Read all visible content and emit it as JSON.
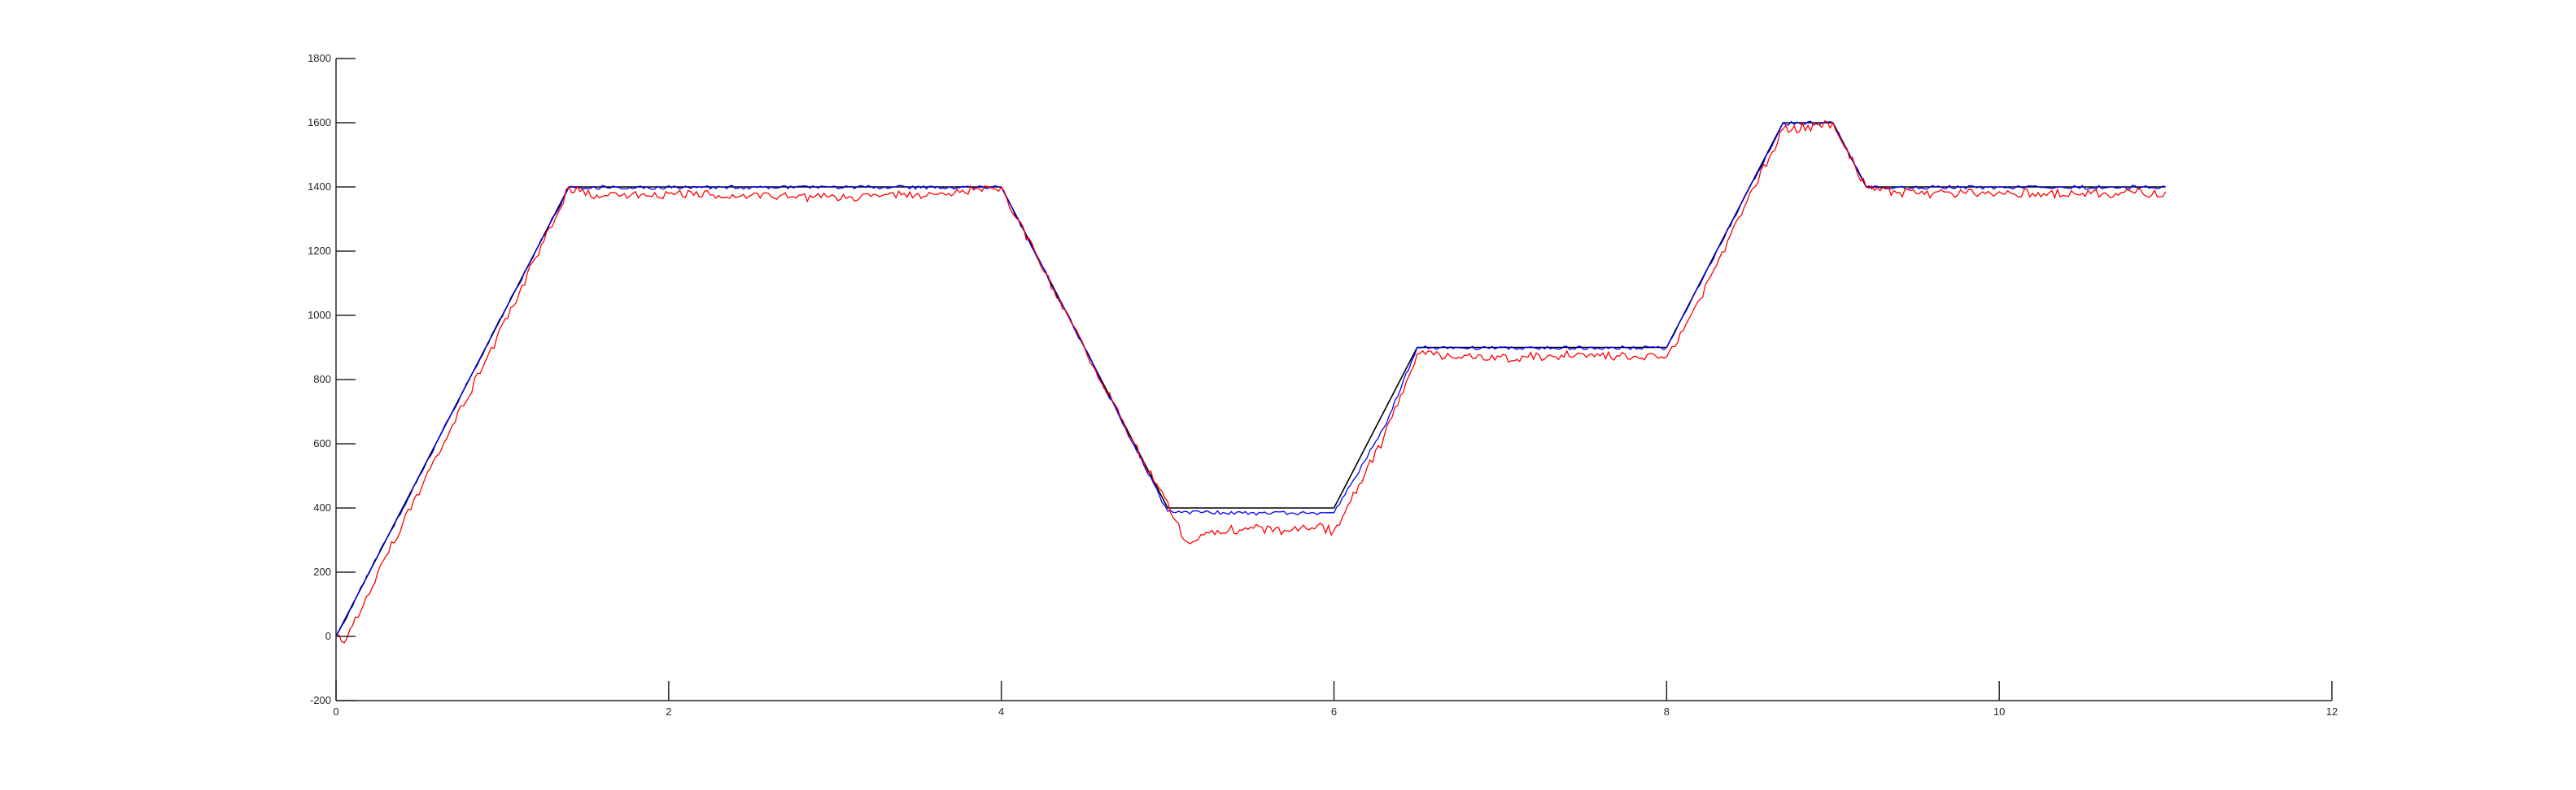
{
  "chart_data": {
    "type": "line",
    "title": "",
    "xlabel": "",
    "ylabel": "",
    "xlim": [
      0,
      12
    ],
    "ylim": [
      -200,
      1800
    ],
    "xticks": [
      "0",
      "2",
      "4",
      "6",
      "8",
      "10",
      "12"
    ],
    "yticks": [
      "-200",
      "0",
      "200",
      "400",
      "600",
      "800",
      "1000",
      "1200",
      "1400",
      "1600",
      "1800"
    ],
    "grid": false,
    "legend": "none",
    "colors": {
      "reference": "#000000",
      "series_blue": "#0000ff",
      "series_red": "#ff0000",
      "axis": "#262626"
    },
    "series": [
      {
        "color": "#000000",
        "x": [
          0,
          1.4,
          4.0,
          5.0,
          6.0,
          6.5,
          8.0,
          8.7,
          9.0,
          9.2,
          11.0
        ],
        "y": [
          0,
          1400,
          1400,
          400,
          400,
          900,
          900,
          1600,
          1600,
          1400,
          1400
        ]
      },
      {
        "color": "#0000ff",
        "x": [
          0,
          0.3,
          0.6,
          0.9,
          1.2,
          1.4,
          2.5,
          4.0,
          4.5,
          5.0,
          5.5,
          6.0,
          6.3,
          6.5,
          7.2,
          8.0,
          8.3,
          8.6,
          8.7,
          9.0,
          9.2,
          10.0,
          11.0
        ],
        "y": [
          0,
          300,
          600,
          900,
          1200,
          1400,
          1400,
          1400,
          900,
          390,
          385,
          385,
          650,
          900,
          900,
          900,
          1200,
          1500,
          1600,
          1600,
          1400,
          1400,
          1400
        ]
      },
      {
        "color": "#ff0000",
        "x": [
          0,
          0.05,
          0.3,
          0.6,
          0.9,
          1.2,
          1.4,
          1.6,
          2.0,
          2.5,
          3.0,
          3.5,
          4.0,
          4.5,
          4.8,
          5.0,
          5.1,
          5.3,
          5.5,
          5.7,
          5.9,
          6.0,
          6.3,
          6.5,
          7.0,
          7.5,
          8.0,
          8.2,
          8.5,
          8.7,
          9.0,
          9.2,
          9.5,
          10.0,
          10.5,
          11.0
        ],
        "y": [
          0,
          -20,
          250,
          560,
          860,
          1180,
          1400,
          1370,
          1380,
          1375,
          1370,
          1380,
          1400,
          900,
          600,
          420,
          300,
          330,
          340,
          330,
          345,
          330,
          620,
          880,
          870,
          880,
          870,
          1050,
          1380,
          1580,
          1600,
          1400,
          1380,
          1385,
          1380,
          1385
        ]
      }
    ]
  }
}
